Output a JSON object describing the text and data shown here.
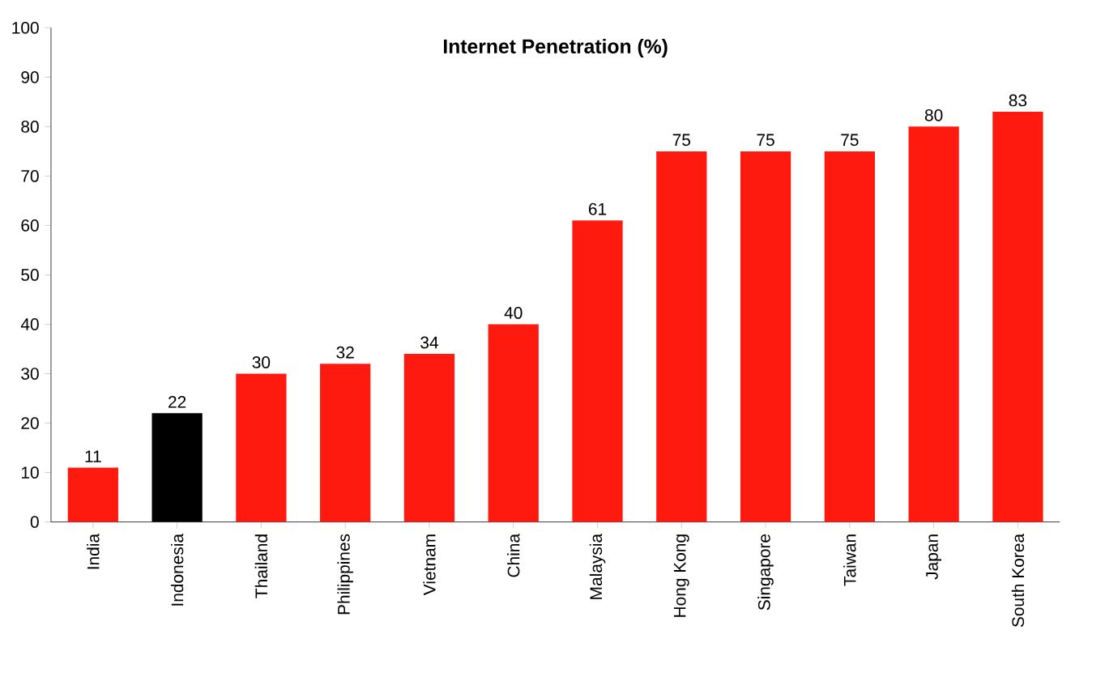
{
  "chart_data": {
    "type": "bar",
    "title": "Internet Penetration (%)",
    "categories": [
      "India",
      "Indonesia",
      "Thailand",
      "Philippines",
      "Vietnam",
      "China",
      "Malaysia",
      "Hong Kong",
      "Singapore",
      "Taiwan",
      "Japan",
      "South Korea"
    ],
    "values": [
      11,
      22,
      30,
      32,
      34,
      40,
      61,
      75,
      75,
      75,
      80,
      83
    ],
    "colors": [
      "#ff1a10",
      "#000000",
      "#ff1a10",
      "#ff1a10",
      "#ff1a10",
      "#ff1a10",
      "#ff1a10",
      "#ff1a10",
      "#ff1a10",
      "#ff1a10",
      "#ff1a10",
      "#ff1a10"
    ],
    "ylim": [
      0,
      100
    ],
    "yticks": [
      0,
      10,
      20,
      30,
      40,
      50,
      60,
      70,
      80,
      90,
      100
    ],
    "data_labels": true,
    "grid": false
  }
}
